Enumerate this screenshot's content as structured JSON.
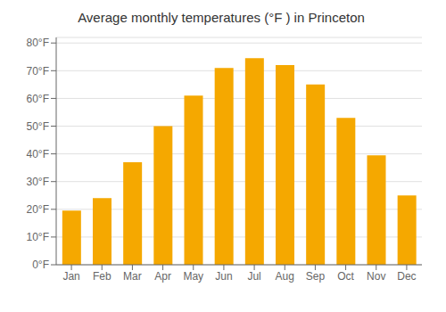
{
  "chart_data": {
    "type": "bar",
    "title": "Average monthly temperatures (°F ) in Princeton",
    "categories": [
      "Jan",
      "Feb",
      "Mar",
      "Apr",
      "May",
      "Jun",
      "Jul",
      "Aug",
      "Sep",
      "Oct",
      "Nov",
      "Dec"
    ],
    "values": [
      19.5,
      24,
      37,
      50,
      61,
      71,
      74.5,
      72,
      65,
      53,
      39.5,
      25
    ],
    "color": "#F5A800",
    "ylim": [
      0,
      82
    ],
    "yticks": [
      {
        "value": 0,
        "label": "0°F"
      },
      {
        "value": 10,
        "label": "10°F"
      },
      {
        "value": 20,
        "label": "20°F"
      },
      {
        "value": 30,
        "label": "30°F"
      },
      {
        "value": 40,
        "label": "40°F"
      },
      {
        "value": 50,
        "label": "50°F"
      },
      {
        "value": 60,
        "label": "60°F"
      },
      {
        "value": 70,
        "label": "70°F"
      },
      {
        "value": 80,
        "label": "80°F"
      }
    ],
    "grid": true
  }
}
